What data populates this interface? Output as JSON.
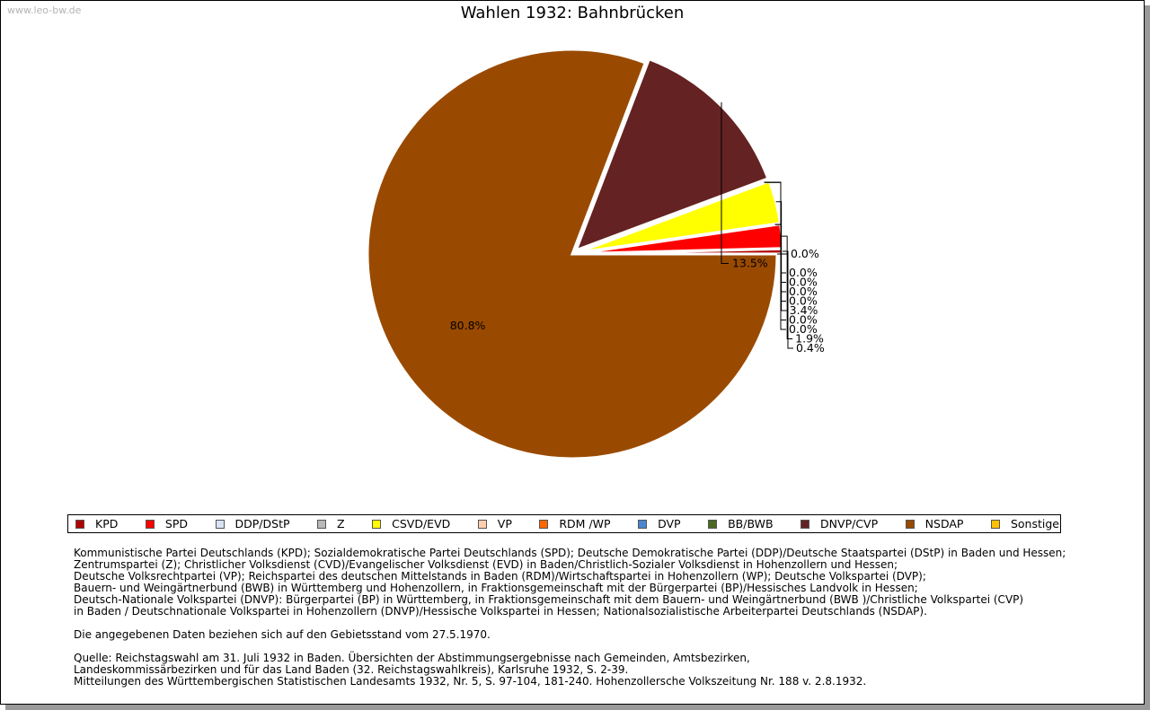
{
  "watermark": "www.leo-bw.de",
  "chart_data": {
    "type": "pie",
    "title": "Wahlen 1932: Bahnbrücken",
    "slices": [
      {
        "name": "KPD",
        "value": 0.4,
        "label": "0.4%",
        "color": "#b00000"
      },
      {
        "name": "SPD",
        "value": 1.9,
        "label": "1.9%",
        "color": "#ff0000"
      },
      {
        "name": "DDP/DStP",
        "value": 0.0,
        "label": "0.0%",
        "color": "#d8e4f4"
      },
      {
        "name": "Z",
        "value": 0.0,
        "label": "0.0%",
        "color": "#b8b8b8"
      },
      {
        "name": "CSVD/EVD",
        "value": 3.4,
        "label": "3.4%",
        "color": "#ffff00"
      },
      {
        "name": "VP",
        "value": 0.0,
        "label": "0.0%",
        "color": "#ffd0b0"
      },
      {
        "name": "RDM /WP",
        "value": 0.0,
        "label": "0.0%",
        "color": "#ff6600"
      },
      {
        "name": "DVP",
        "value": 0.0,
        "label": "0.0%",
        "color": "#4a86d0"
      },
      {
        "name": "BB/BWB",
        "value": 0.0,
        "label": "0.0%",
        "color": "#4a6a22"
      },
      {
        "name": "DNVP/CVP",
        "value": 13.5,
        "label": "13.5%",
        "color": "#652222"
      },
      {
        "name": "NSDAP",
        "value": 80.8,
        "label": "80.8%",
        "color": "#9a4a00"
      },
      {
        "name": "Sonstige",
        "value": 0.0,
        "label": "0.0%",
        "color": "#ffc000"
      }
    ],
    "legend_position": "bottom"
  },
  "notes": {
    "parties": [
      "Kommunistische Partei Deutschlands (KPD); Sozialdemokratische Partei Deutschlands (SPD); Deutsche Demokratische Partei (DDP)/Deutsche Staatspartei (DStP) in Baden und Hessen;",
      "Zentrumspartei (Z); Christlicher Volksdienst (CVD)/Evangelischer Volksdienst (EVD) in Baden/Christlich-Sozialer Volksdienst in Hohenzollern und Hessen;",
      "Deutsche Volksrechtpartei (VP); Reichspartei des deutschen Mittelstands in Baden (RDM)/Wirtschaftspartei in Hohenzollern (WP); Deutsche Volkspartei (DVP);",
      "Bauern- und Weingärtnerbund (BWB) in Württemberg und Hohenzollern, in Fraktionsgemeinschaft mit der Bürgerpartei (BP)/Hessisches Landvolk in Hessen;",
      "Deutsch-Nationale Volkspartei (DNVP): Bürgerpartei (BP) in Württemberg, in Fraktionsgemeinschaft mit dem Bauern- und Weingärtnerbund (BWB )/Christliche Volkspartei (CVP)",
      "in Baden / Deutschnationale Volkspartei in Hohenzollern (DNVP)/Hessische Volkspartei in Hessen; Nationalsozialistische Arbeiterpartei Deutschlands (NSDAP)."
    ],
    "territory": "Die angegebenen Daten beziehen sich auf den Gebietsstand vom 27.5.1970.",
    "source": [
      "Quelle: Reichstagswahl am 31. Juli 1932 in Baden. Übersichten der Abstimmungsergebnisse nach Gemeinden, Amtsbezirken,",
      "Landeskommissärbezirken und für das Land Baden (32. Reichstagswahlkreis), Karlsruhe 1932, S. 2-39.",
      "Mitteilungen des Württembergischen Statistischen Landesamts 1932, Nr. 5, S. 97-104, 181-240. Hohenzollersche Volkszeitung Nr. 188 v. 2.8.1932."
    ]
  }
}
